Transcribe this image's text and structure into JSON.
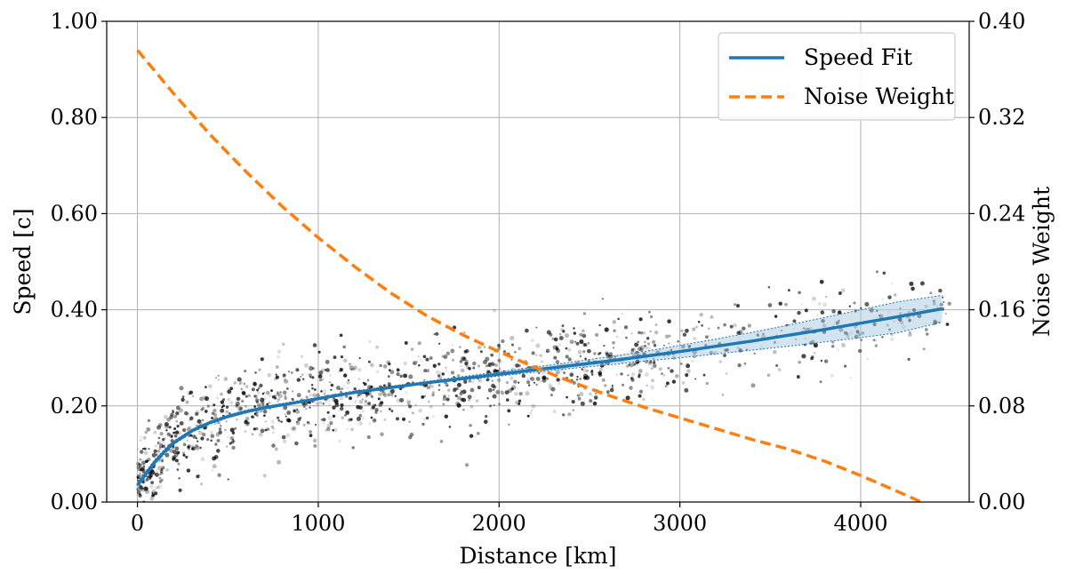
{
  "chart_data": {
    "type": "line",
    "title": "",
    "xlabel": "Distance [km]",
    "ylabel": "Speed [c]",
    "y2label": "Noise Weight",
    "xlim": [
      -170,
      4600
    ],
    "ylim": [
      0,
      1.0
    ],
    "y2lim": [
      0,
      0.4
    ],
    "xticks": [
      0,
      1000,
      2000,
      3000,
      4000
    ],
    "xtick_labels": [
      "0",
      "1000",
      "2000",
      "3000",
      "4000"
    ],
    "yticks": [
      0,
      0.2,
      0.4,
      0.6,
      0.8,
      1.0
    ],
    "ytick_labels": [
      "0.00",
      "0.20",
      "0.40",
      "0.60",
      "0.80",
      "1.00"
    ],
    "y2ticks": [
      0,
      0.08,
      0.16,
      0.24,
      0.32,
      0.4
    ],
    "y2tick_labels": [
      "0.00",
      "0.08",
      "0.16",
      "0.24",
      "0.32",
      "0.40"
    ],
    "grid": true,
    "legend_position": "top-right",
    "legend": [
      "Speed Fit",
      "Noise Weight"
    ],
    "colors": {
      "speed_fit": "#1f77b4",
      "band": "#aecde6",
      "noise_weight": "#ff7f0e",
      "scatter": "#000000",
      "grid": "#b0b0b0"
    },
    "series": [
      {
        "name": "Speed Fit",
        "axis": "left",
        "style": "solid",
        "x": [
          0,
          50,
          100,
          150,
          200,
          300,
          400,
          500,
          600,
          700,
          800,
          1000,
          1200,
          1400,
          1600,
          1800,
          2000,
          2200,
          2400,
          2600,
          2800,
          3000,
          3200,
          3400,
          3600,
          3800,
          4000,
          4200,
          4450
        ],
        "y": [
          0.035,
          0.06,
          0.085,
          0.105,
          0.123,
          0.148,
          0.165,
          0.178,
          0.188,
          0.196,
          0.202,
          0.215,
          0.228,
          0.238,
          0.248,
          0.257,
          0.266,
          0.275,
          0.284,
          0.293,
          0.303,
          0.313,
          0.324,
          0.335,
          0.347,
          0.359,
          0.372,
          0.385,
          0.402
        ],
        "lower": [
          0.028,
          0.054,
          0.08,
          0.1,
          0.119,
          0.145,
          0.162,
          0.175,
          0.185,
          0.193,
          0.2,
          0.213,
          0.226,
          0.236,
          0.246,
          0.254,
          0.262,
          0.27,
          0.278,
          0.285,
          0.293,
          0.3,
          0.308,
          0.316,
          0.324,
          0.333,
          0.342,
          0.352,
          0.374
        ],
        "upper": [
          0.042,
          0.066,
          0.09,
          0.11,
          0.127,
          0.151,
          0.168,
          0.181,
          0.191,
          0.199,
          0.205,
          0.218,
          0.231,
          0.241,
          0.251,
          0.261,
          0.271,
          0.281,
          0.291,
          0.302,
          0.313,
          0.326,
          0.339,
          0.353,
          0.368,
          0.384,
          0.4,
          0.416,
          0.43
        ]
      },
      {
        "name": "Noise Weight",
        "axis": "right",
        "style": "dashed",
        "x": [
          0,
          200,
          400,
          600,
          800,
          1000,
          1200,
          1400,
          1600,
          1800,
          2000,
          2200,
          2400,
          2600,
          2800,
          3000,
          3200,
          3400,
          3600,
          3800,
          4000,
          4200,
          4350
        ],
        "y": [
          0.376,
          0.34,
          0.306,
          0.275,
          0.246,
          0.22,
          0.196,
          0.174,
          0.155,
          0.139,
          0.125,
          0.112,
          0.1,
          0.089,
          0.079,
          0.07,
          0.061,
          0.052,
          0.044,
          0.034,
          0.022,
          0.009,
          -0.001
        ]
      }
    ]
  }
}
